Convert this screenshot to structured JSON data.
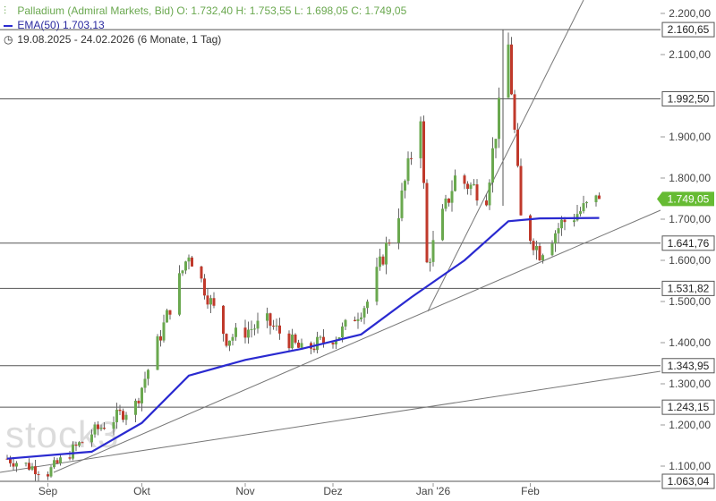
{
  "header": {
    "instrument_line": "Palladium (Admiral Markets, Bid)  O: 1.732,40  H: 1.753,55  L: 1.698,05  C: 1.749,05",
    "ema_line": "EMA(50)  1.703,13",
    "range_line": "19.08.2025 - 24.02.2026   (6 Monate, 1 Tag)"
  },
  "watermark": "stock3",
  "colors": {
    "up": "#6aa84f",
    "down": "#c0392b",
    "ema": "#2a2ad0",
    "level_line": "#555555",
    "trend_line": "#777777",
    "last_price_bg": "#66bb33"
  },
  "chart_data": {
    "type": "candlestick",
    "title": "Palladium (Admiral Markets, Bid)",
    "xlabel": "",
    "ylabel": "",
    "ylim": [
      1050,
      2230
    ],
    "x_ticks": [
      "Sep",
      "Okt",
      "Nov",
      "Dez",
      "Jan '26",
      "Feb"
    ],
    "y_ticks": [
      "2.200,00",
      "2.100,00",
      "1.900,00",
      "1.800,00",
      "1.700,00",
      "1.600,00",
      "1.500,00",
      "1.400,00",
      "1.300,00",
      "1.200,00",
      "1.100,00"
    ],
    "y_tick_values": [
      2200,
      2100,
      1900,
      1800,
      1700,
      1600,
      1500,
      1400,
      1300,
      1200,
      1100
    ],
    "levels": [
      {
        "label": "2.160,65",
        "value": 2160.65
      },
      {
        "label": "1.992,50",
        "value": 1992.5
      },
      {
        "label": "1.641,76",
        "value": 1641.76
      },
      {
        "label": "1.531,82",
        "value": 1531.82
      },
      {
        "label": "1.343,95",
        "value": 1343.95
      },
      {
        "label": "1.243,15",
        "value": 1243.15
      },
      {
        "label": "1.063,04",
        "value": 1063.04
      }
    ],
    "last_price": {
      "label": "1.749,05",
      "value": 1749.05
    },
    "key_points": [
      {
        "date": "2025-08-19",
        "close": 1118
      },
      {
        "date": "2025-09-01",
        "close": 1085
      },
      {
        "date": "2025-09-15",
        "close": 1180
      },
      {
        "date": "2025-09-29",
        "close": 1250
      },
      {
        "date": "2025-10-07",
        "close": 1420
      },
      {
        "date": "2025-10-16",
        "close": 1620
      },
      {
        "date": "2025-10-28",
        "close": 1410
      },
      {
        "date": "2025-11-10",
        "close": 1450
      },
      {
        "date": "2025-11-21",
        "close": 1380
      },
      {
        "date": "2025-12-03",
        "close": 1420
      },
      {
        "date": "2025-12-12",
        "close": 1500
      },
      {
        "date": "2025-12-22",
        "close": 1720
      },
      {
        "date": "2025-12-29",
        "close": 1960
      },
      {
        "date": "2025-12-31",
        "close": 1590
      },
      {
        "date": "2026-01-09",
        "close": 1800
      },
      {
        "date": "2026-01-19",
        "close": 1760
      },
      {
        "date": "2026-01-26",
        "close": 2120
      },
      {
        "date": "2026-01-30",
        "close": 1700
      },
      {
        "date": "2026-02-05",
        "close": 1620
      },
      {
        "date": "2026-02-12",
        "close": 1690
      },
      {
        "date": "2026-02-24",
        "close": 1749.05
      }
    ],
    "ema50": [
      {
        "date": "2025-08-19",
        "value": 1118
      },
      {
        "date": "2025-09-15",
        "value": 1135
      },
      {
        "date": "2025-10-01",
        "value": 1205
      },
      {
        "date": "2025-10-16",
        "value": 1320
      },
      {
        "date": "2025-11-03",
        "value": 1358
      },
      {
        "date": "2025-11-21",
        "value": 1385
      },
      {
        "date": "2025-12-10",
        "value": 1420
      },
      {
        "date": "2025-12-26",
        "value": 1510
      },
      {
        "date": "2026-01-12",
        "value": 1600
      },
      {
        "date": "2026-01-26",
        "value": 1695
      },
      {
        "date": "2026-02-05",
        "value": 1702
      },
      {
        "date": "2026-02-24",
        "value": 1703.13
      }
    ]
  }
}
